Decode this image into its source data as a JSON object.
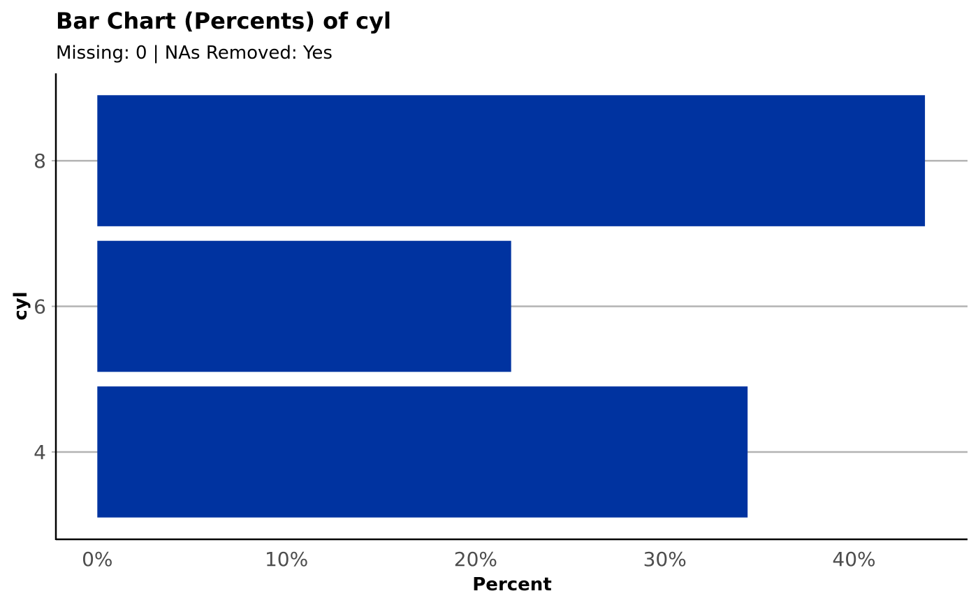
{
  "chart_data": {
    "type": "bar",
    "orientation": "horizontal",
    "title": "Bar Chart (Percents) of cyl",
    "subtitle": "Missing: 0 | NAs Removed: Yes",
    "xlabel": "Percent",
    "ylabel": "cyl",
    "categories": [
      "4",
      "6",
      "8"
    ],
    "values": [
      34.375,
      21.875,
      43.75
    ],
    "value_unit": "%",
    "xlim": [
      -2.19,
      46.0
    ],
    "xticks": [
      0,
      10,
      20,
      30,
      40
    ],
    "xtick_labels": [
      "0%",
      "10%",
      "20%",
      "30%",
      "40%"
    ],
    "grid": "horizontal-major",
    "legend": "none",
    "colors": {
      "bar": "#0033A0",
      "grid": "#B3B3B3",
      "axis": "#000000",
      "tick_label": "#4D4D4D",
      "text": "#000000"
    }
  }
}
